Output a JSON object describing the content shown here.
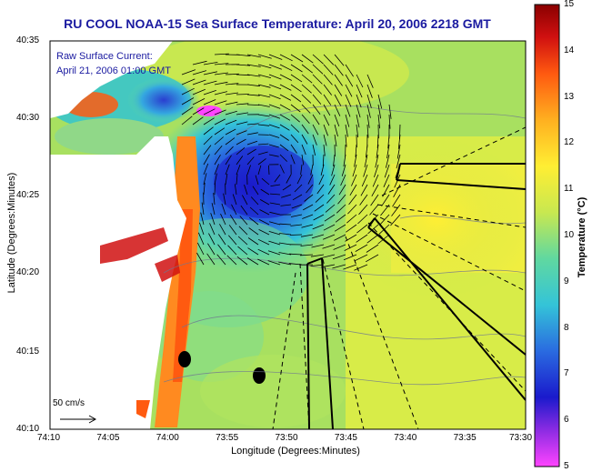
{
  "title": "RU COOL  NOAA-15  Sea Surface Temperature:  April 20, 2006 2218 GMT",
  "legend": {
    "line1": "Raw Surface Current:",
    "line2": "April 21, 2006 01:00 GMT"
  },
  "scale_label": "50 cm/s",
  "axes": {
    "xlabel": "Longitude (Degrees:Minutes)",
    "ylabel": "Latitude (Degrees:Minutes)",
    "xticks": [
      "74:10",
      "74:05",
      "74:00",
      "73:55",
      "73:50",
      "73:45",
      "73:40",
      "73:35",
      "73:30"
    ],
    "yticks": [
      "40:35",
      "40:30",
      "40:25",
      "40:20",
      "40:15",
      "40:10"
    ]
  },
  "colorbar": {
    "title": "Temperature (°C)",
    "ticks": [
      "15",
      "14",
      "13",
      "12",
      "11",
      "10",
      "9",
      "8",
      "7",
      "6",
      "5"
    ],
    "range": [
      5,
      15
    ],
    "colors": [
      "#ff44ff",
      "#8a2be2",
      "#1a1acc",
      "#2a6be0",
      "#34c4d8",
      "#60d8a0",
      "#c8e850",
      "#ffee33",
      "#ffb020",
      "#ff5a10",
      "#d01010",
      "#8a0000"
    ]
  }
}
